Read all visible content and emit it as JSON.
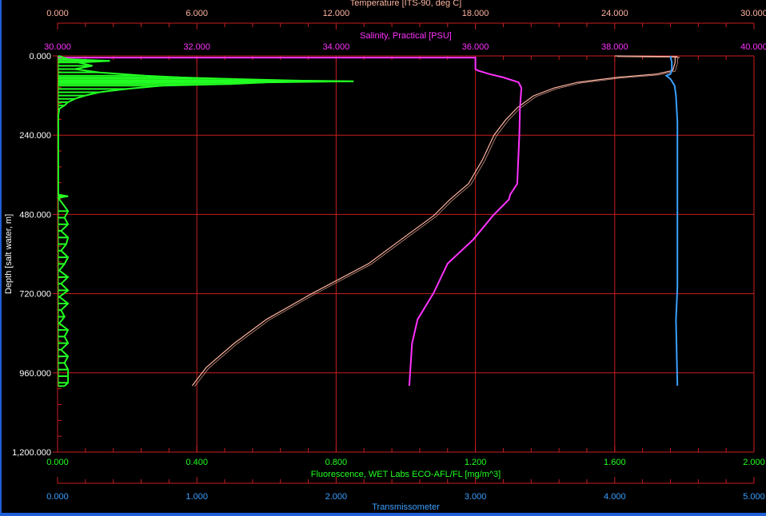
{
  "chart_data": {
    "type": "line",
    "grid": true,
    "colors": {
      "grid": "#c81e1e",
      "temperature": "#ffb4a0",
      "salinity": "#ff33ff",
      "fluorescence": "#22ff22",
      "transmissometer": "#3aa0ff",
      "depth": "#ffffff"
    },
    "depth_axis": {
      "label": "Depth [salt water, m]",
      "range": [
        0,
        1200
      ],
      "ticks": [
        "0.000",
        "240.000",
        "480.000",
        "720.000",
        "960.000",
        "1,200.000"
      ],
      "tick_values": [
        0,
        240,
        480,
        720,
        960,
        1200
      ]
    },
    "axes": [
      {
        "key": "temperature",
        "label": "Temperature [ITS-90, deg C]",
        "position": "top-outer",
        "range": [
          0,
          30
        ],
        "ticks": [
          "0.000",
          "6.000",
          "12.000",
          "18.000",
          "24.000",
          "30.000"
        ]
      },
      {
        "key": "salinity",
        "label": "Salinity, Practical [PSU]",
        "position": "top-inner",
        "range": [
          30,
          40
        ],
        "ticks": [
          "30.000",
          "32.000",
          "34.000",
          "36.000",
          "38.000",
          "40.000"
        ]
      },
      {
        "key": "fluorescence",
        "label": "Fluorescence, WET Labs ECO-AFL/FL [mg/m^3]",
        "position": "bottom-inner",
        "range": [
          0,
          2
        ],
        "ticks": [
          "0.000",
          "0.400",
          "0.800",
          "1.200",
          "1.600",
          "2.000"
        ]
      },
      {
        "key": "transmissometer",
        "label": "Transmissometer",
        "position": "bottom-outer",
        "range": [
          0,
          5
        ],
        "ticks": [
          "0.000",
          "1.000",
          "2.000",
          "3.000",
          "4.000",
          "5.000"
        ]
      }
    ],
    "series": [
      {
        "axis": "temperature",
        "depth": [
          0,
          2,
          5,
          20,
          44,
          55,
          65,
          80,
          97,
          121,
          157,
          194,
          240,
          315,
          387,
          435,
          484,
          556,
          629,
          718,
          798,
          871,
          944,
          999
        ],
        "values": [
          24.0,
          26.7,
          26.6,
          26.6,
          26.5,
          25.8,
          24.1,
          22.4,
          21.4,
          20.5,
          19.8,
          19.3,
          18.8,
          18.3,
          17.7,
          16.9,
          16.2,
          14.8,
          13.4,
          11.0,
          9.0,
          7.6,
          6.4,
          5.8
        ]
      },
      {
        "axis": "salinity",
        "depth": [
          5,
          5,
          10,
          40,
          44,
          55,
          65,
          80,
          97,
          157,
          240,
          387,
          420,
          435,
          484,
          556,
          629,
          718,
          798,
          871,
          999
        ],
        "values": [
          30.0,
          36.0,
          36.0,
          36.0,
          36.03,
          36.2,
          36.4,
          36.62,
          36.66,
          36.64,
          36.63,
          36.6,
          36.5,
          36.48,
          36.25,
          35.97,
          35.6,
          35.4,
          35.17,
          35.09,
          35.05
        ]
      },
      {
        "axis": "fluorescence",
        "depth": [
          0,
          10,
          15,
          20,
          30,
          40,
          50,
          60,
          65,
          70,
          75,
          77,
          80,
          85,
          90,
          100,
          110,
          120,
          130,
          140,
          150,
          160,
          180,
          250,
          420,
          425,
          430,
          470,
          490,
          510,
          530,
          550,
          570,
          590,
          610,
          630,
          650,
          670,
          690,
          710,
          730,
          750,
          770,
          790,
          810,
          830,
          850,
          870,
          890,
          910,
          930,
          950,
          970,
          990,
          1000
        ],
        "values": [
          0.003,
          0.03,
          0.15,
          0.06,
          0.1,
          0.05,
          0.12,
          0.25,
          0.35,
          0.5,
          0.7,
          0.85,
          0.6,
          0.5,
          0.3,
          0.2,
          0.12,
          0.08,
          0.05,
          0.03,
          0.02,
          0.005,
          0.002,
          0.002,
          0.002,
          0.03,
          0.002,
          0.03,
          0.02,
          0.03,
          0.01,
          0.03,
          0.025,
          0.01,
          0.03,
          0.02,
          0.005,
          0.03,
          0.01,
          0.03,
          0.005,
          0.03,
          0.01,
          0.02,
          0.005,
          0.03,
          0.02,
          0.03,
          0.01,
          0.03,
          0.02,
          0.03,
          0.03,
          0.03,
          0.02
        ]
      },
      {
        "axis": "transmissometer",
        "depth": [
          0,
          20,
          40,
          55,
          60,
          70,
          90,
          120,
          200,
          400,
          700,
          800,
          999
        ],
        "values": [
          4.4,
          4.41,
          4.41,
          4.4,
          4.37,
          4.4,
          4.43,
          4.44,
          4.45,
          4.45,
          4.45,
          4.44,
          4.45
        ]
      }
    ]
  }
}
